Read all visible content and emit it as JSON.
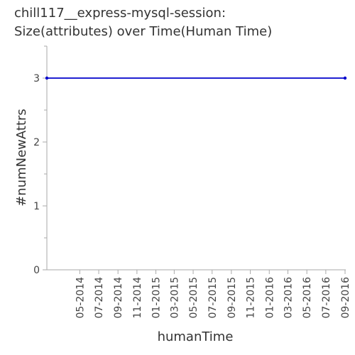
{
  "chart_data": {
    "type": "line",
    "title_lines": [
      "chill117__express-mysql-session:",
      "Size(attributes) over Time(Human Time)"
    ],
    "xlabel": "humanTime",
    "ylabel": "#numNewAttrs",
    "x_scale": "date",
    "x_range": [
      "2014-01-15",
      "2016-09-01"
    ],
    "ylim": [
      0,
      3.5
    ],
    "y_ticks": [
      0,
      1,
      2,
      3
    ],
    "y_tick_labels": [
      "0",
      "1",
      "2",
      "3"
    ],
    "x_ticks": [
      "2014-05-01",
      "2014-07-01",
      "2014-09-01",
      "2014-11-01",
      "2015-01-01",
      "2015-03-01",
      "2015-05-01",
      "2015-07-01",
      "2015-09-01",
      "2015-11-01",
      "2016-01-01",
      "2016-03-01",
      "2016-05-01",
      "2016-07-01",
      "2016-09-01"
    ],
    "x_tick_labels": [
      "05-2014",
      "07-2014",
      "09-2014",
      "11-2014",
      "01-2015",
      "03-2015",
      "05-2015",
      "07-2015",
      "09-2015",
      "11-2015",
      "01-2016",
      "03-2016",
      "05-2016",
      "07-2016",
      "09-2016"
    ],
    "grid": false,
    "legend": "none",
    "series": [
      {
        "color": "#0000cc",
        "points": [
          {
            "x": "2014-01-15",
            "y": 3
          },
          {
            "x": "2016-09-01",
            "y": 3
          }
        ]
      }
    ]
  }
}
